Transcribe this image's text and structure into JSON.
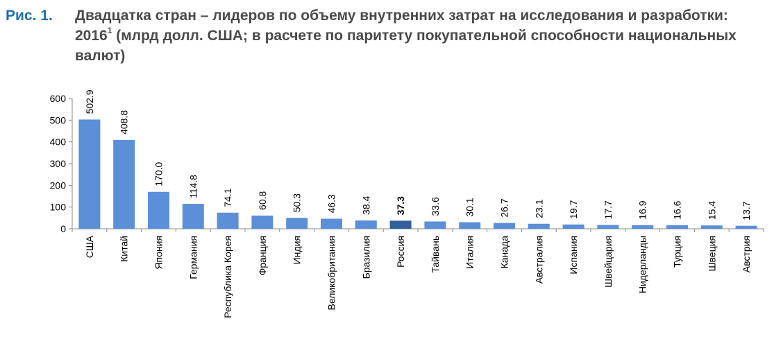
{
  "figure": {
    "label": "Рис. 1.",
    "title_part1": "Двадцатка стран – лидеров по объему внутренних затрат на исследования и разработки: 2016",
    "title_sup": "1",
    "title_part2": " (млрд долл. США; в расчете по паритету покупательной способности национальных валют)"
  },
  "colors": {
    "bar": "#5b8fd7",
    "bar_highlight": "#335f9a",
    "label_blue": "#1f6fb5",
    "title_gray": "#4a4a4a",
    "axis": "#888888"
  },
  "chart_data": {
    "type": "bar",
    "categories": [
      "США",
      "Китай",
      "Япония",
      "Германия",
      "Республика Корея",
      "Франция",
      "Индия",
      "Великобритания",
      "Бразилия",
      "Россия",
      "Тайвань",
      "Италия",
      "Канада",
      "Австралия",
      "Испания",
      "Швейцария",
      "Нидерланды",
      "Турция",
      "Швеция",
      "Австрия"
    ],
    "values": [
      502.9,
      408.8,
      170.0,
      114.8,
      74.1,
      60.8,
      50.3,
      46.3,
      38.4,
      37.3,
      33.6,
      30.1,
      26.7,
      23.1,
      19.7,
      17.7,
      16.9,
      16.6,
      15.4,
      13.7
    ],
    "value_labels": [
      "502.9",
      "408.8",
      "170.0",
      "114.8",
      "74.1",
      "60.8",
      "50.3",
      "46.3",
      "38.4",
      "37.3",
      "33.6",
      "30.1",
      "26.7",
      "23.1",
      "19.7",
      "17.7",
      "16.9",
      "16.6",
      "15.4",
      "13.7"
    ],
    "highlight": "Россия",
    "ylim": [
      0,
      600
    ],
    "yticks": [
      0,
      100,
      200,
      300,
      400,
      500,
      600
    ],
    "ytick_labels": [
      "0",
      "100",
      "200",
      "300",
      "400",
      "500",
      "600"
    ],
    "grid": false,
    "legend": "none"
  }
}
